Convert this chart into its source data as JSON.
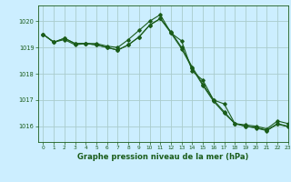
{
  "background_color": "#cceeff",
  "grid_color": "#aacccc",
  "line_color": "#1a5c1a",
  "title": "Graphe pression niveau de la mer (hPa)",
  "xlim": [
    -0.5,
    23
  ],
  "ylim": [
    1015.4,
    1020.6
  ],
  "yticks": [
    1016,
    1017,
    1018,
    1019,
    1020
  ],
  "xticks": [
    0,
    1,
    2,
    3,
    4,
    5,
    6,
    7,
    8,
    9,
    10,
    11,
    12,
    13,
    14,
    15,
    16,
    17,
    18,
    19,
    20,
    21,
    22,
    23
  ],
  "series": [
    [
      1019.5,
      1019.2,
      1019.3,
      1019.1,
      1019.15,
      1019.15,
      1019.05,
      1019.0,
      1019.3,
      1019.65,
      1020.0,
      1020.25,
      1019.55,
      1019.25,
      1018.1,
      1017.75,
      1017.0,
      1016.85,
      1016.1,
      1016.05,
      1016.0,
      1015.9,
      1016.2,
      1016.1
    ],
    [
      1019.5,
      1019.2,
      1019.35,
      1019.15,
      1019.15,
      1019.1,
      1019.0,
      1018.9,
      1019.1,
      1019.4,
      1019.85,
      1020.1,
      1019.6,
      1019.0,
      1018.25,
      1017.6,
      1017.0,
      1016.55,
      1016.1,
      1016.0,
      1015.95,
      1015.85,
      1016.1,
      1016.0
    ],
    [
      1019.5,
      1019.2,
      1019.35,
      1019.15,
      1019.15,
      1019.1,
      1019.0,
      1018.9,
      1019.1,
      1019.4,
      1019.85,
      1020.1,
      1019.55,
      1018.95,
      1018.2,
      1017.55,
      1016.95,
      1016.5,
      1016.1,
      1016.0,
      1015.93,
      1015.83,
      1016.08,
      1015.98
    ]
  ]
}
